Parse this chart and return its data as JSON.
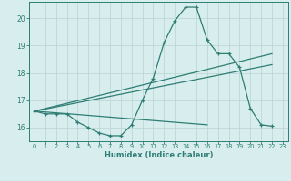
{
  "xlabel": "Humidex (Indice chaleur)",
  "bg_color": "#d8eeee",
  "line_color": "#2e7d74",
  "grid_color": "#b8d4d4",
  "xlim": [
    -0.5,
    23.5
  ],
  "ylim": [
    15.5,
    20.6
  ],
  "xticks": [
    0,
    1,
    2,
    3,
    4,
    5,
    6,
    7,
    8,
    9,
    10,
    11,
    12,
    13,
    14,
    15,
    16,
    17,
    18,
    19,
    20,
    21,
    22,
    23
  ],
  "yticks": [
    16,
    17,
    18,
    19,
    20
  ],
  "series_main": {
    "x": [
      0,
      1,
      2,
      3,
      4,
      5,
      6,
      7,
      8,
      9,
      10,
      11,
      12,
      13,
      14,
      15,
      16,
      17,
      18,
      19,
      20,
      21,
      22
    ],
    "y": [
      16.6,
      16.5,
      16.5,
      16.5,
      16.2,
      16.0,
      15.8,
      15.7,
      15.7,
      16.1,
      17.0,
      17.8,
      19.1,
      19.9,
      20.4,
      20.4,
      19.2,
      18.7,
      18.7,
      18.2,
      16.7,
      16.1,
      16.05
    ]
  },
  "line_upper": {
    "x": [
      0,
      22
    ],
    "y": [
      16.6,
      18.7
    ]
  },
  "line_mid": {
    "x": [
      0,
      22
    ],
    "y": [
      16.6,
      18.3
    ]
  },
  "line_lower": {
    "x": [
      0,
      16
    ],
    "y": [
      16.6,
      16.1
    ]
  }
}
